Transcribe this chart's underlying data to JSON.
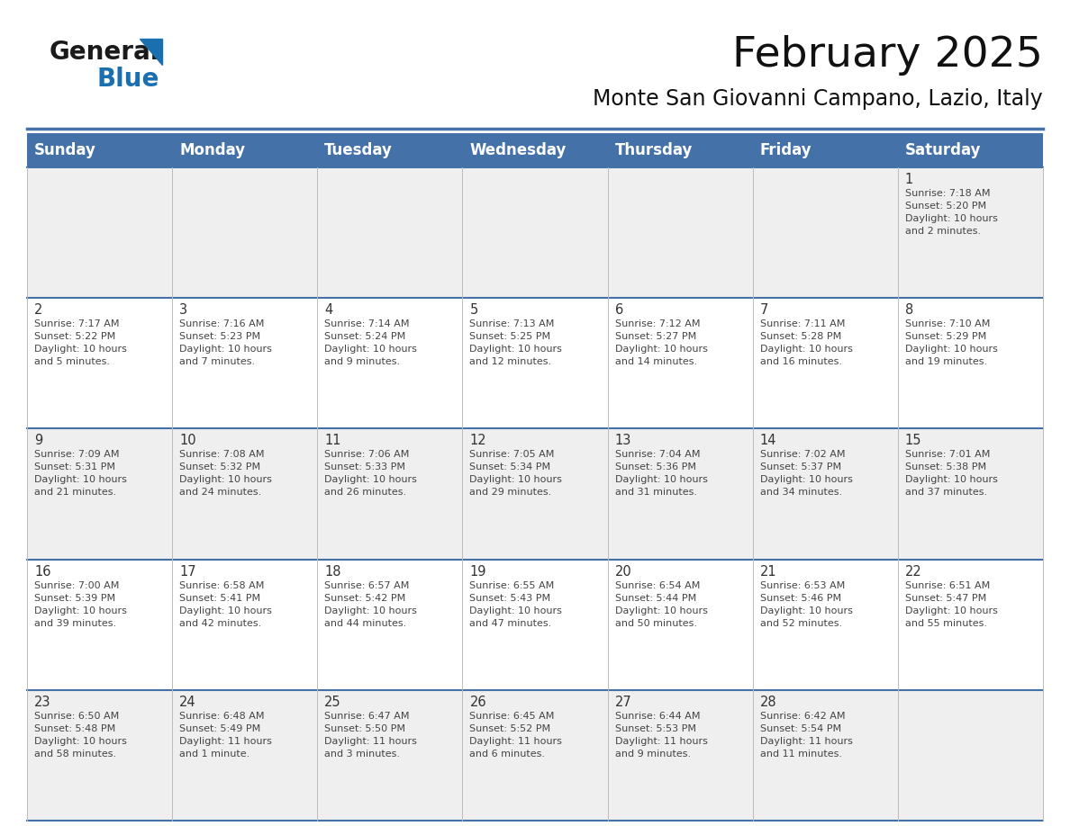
{
  "title": "February 2025",
  "subtitle": "Monte San Giovanni Campano, Lazio, Italy",
  "header_color": "#4472A8",
  "header_text_color": "#FFFFFF",
  "cell_bg_even": "#EFEFEF",
  "cell_bg_odd": "#FFFFFF",
  "day_headers": [
    "Sunday",
    "Monday",
    "Tuesday",
    "Wednesday",
    "Thursday",
    "Friday",
    "Saturday"
  ],
  "title_fontsize": 34,
  "subtitle_fontsize": 17,
  "header_fontsize": 12,
  "day_num_fontsize": 10.5,
  "cell_text_fontsize": 8.0,
  "logo_general_color": "#1a1a1a",
  "logo_blue_color": "#1a6faf",
  "logo_triangle_color": "#1a6faf",
  "days": [
    {
      "day": 1,
      "col": 6,
      "row": 0,
      "sunrise": "7:18 AM",
      "sunset": "5:20 PM",
      "daylight_line1": "10 hours",
      "daylight_line2": "and 2 minutes."
    },
    {
      "day": 2,
      "col": 0,
      "row": 1,
      "sunrise": "7:17 AM",
      "sunset": "5:22 PM",
      "daylight_line1": "10 hours",
      "daylight_line2": "and 5 minutes."
    },
    {
      "day": 3,
      "col": 1,
      "row": 1,
      "sunrise": "7:16 AM",
      "sunset": "5:23 PM",
      "daylight_line1": "10 hours",
      "daylight_line2": "and 7 minutes."
    },
    {
      "day": 4,
      "col": 2,
      "row": 1,
      "sunrise": "7:14 AM",
      "sunset": "5:24 PM",
      "daylight_line1": "10 hours",
      "daylight_line2": "and 9 minutes."
    },
    {
      "day": 5,
      "col": 3,
      "row": 1,
      "sunrise": "7:13 AM",
      "sunset": "5:25 PM",
      "daylight_line1": "10 hours",
      "daylight_line2": "and 12 minutes."
    },
    {
      "day": 6,
      "col": 4,
      "row": 1,
      "sunrise": "7:12 AM",
      "sunset": "5:27 PM",
      "daylight_line1": "10 hours",
      "daylight_line2": "and 14 minutes."
    },
    {
      "day": 7,
      "col": 5,
      "row": 1,
      "sunrise": "7:11 AM",
      "sunset": "5:28 PM",
      "daylight_line1": "10 hours",
      "daylight_line2": "and 16 minutes."
    },
    {
      "day": 8,
      "col": 6,
      "row": 1,
      "sunrise": "7:10 AM",
      "sunset": "5:29 PM",
      "daylight_line1": "10 hours",
      "daylight_line2": "and 19 minutes."
    },
    {
      "day": 9,
      "col": 0,
      "row": 2,
      "sunrise": "7:09 AM",
      "sunset": "5:31 PM",
      "daylight_line1": "10 hours",
      "daylight_line2": "and 21 minutes."
    },
    {
      "day": 10,
      "col": 1,
      "row": 2,
      "sunrise": "7:08 AM",
      "sunset": "5:32 PM",
      "daylight_line1": "10 hours",
      "daylight_line2": "and 24 minutes."
    },
    {
      "day": 11,
      "col": 2,
      "row": 2,
      "sunrise": "7:06 AM",
      "sunset": "5:33 PM",
      "daylight_line1": "10 hours",
      "daylight_line2": "and 26 minutes."
    },
    {
      "day": 12,
      "col": 3,
      "row": 2,
      "sunrise": "7:05 AM",
      "sunset": "5:34 PM",
      "daylight_line1": "10 hours",
      "daylight_line2": "and 29 minutes."
    },
    {
      "day": 13,
      "col": 4,
      "row": 2,
      "sunrise": "7:04 AM",
      "sunset": "5:36 PM",
      "daylight_line1": "10 hours",
      "daylight_line2": "and 31 minutes."
    },
    {
      "day": 14,
      "col": 5,
      "row": 2,
      "sunrise": "7:02 AM",
      "sunset": "5:37 PM",
      "daylight_line1": "10 hours",
      "daylight_line2": "and 34 minutes."
    },
    {
      "day": 15,
      "col": 6,
      "row": 2,
      "sunrise": "7:01 AM",
      "sunset": "5:38 PM",
      "daylight_line1": "10 hours",
      "daylight_line2": "and 37 minutes."
    },
    {
      "day": 16,
      "col": 0,
      "row": 3,
      "sunrise": "7:00 AM",
      "sunset": "5:39 PM",
      "daylight_line1": "10 hours",
      "daylight_line2": "and 39 minutes."
    },
    {
      "day": 17,
      "col": 1,
      "row": 3,
      "sunrise": "6:58 AM",
      "sunset": "5:41 PM",
      "daylight_line1": "10 hours",
      "daylight_line2": "and 42 minutes."
    },
    {
      "day": 18,
      "col": 2,
      "row": 3,
      "sunrise": "6:57 AM",
      "sunset": "5:42 PM",
      "daylight_line1": "10 hours",
      "daylight_line2": "and 44 minutes."
    },
    {
      "day": 19,
      "col": 3,
      "row": 3,
      "sunrise": "6:55 AM",
      "sunset": "5:43 PM",
      "daylight_line1": "10 hours",
      "daylight_line2": "and 47 minutes."
    },
    {
      "day": 20,
      "col": 4,
      "row": 3,
      "sunrise": "6:54 AM",
      "sunset": "5:44 PM",
      "daylight_line1": "10 hours",
      "daylight_line2": "and 50 minutes."
    },
    {
      "day": 21,
      "col": 5,
      "row": 3,
      "sunrise": "6:53 AM",
      "sunset": "5:46 PM",
      "daylight_line1": "10 hours",
      "daylight_line2": "and 52 minutes."
    },
    {
      "day": 22,
      "col": 6,
      "row": 3,
      "sunrise": "6:51 AM",
      "sunset": "5:47 PM",
      "daylight_line1": "10 hours",
      "daylight_line2": "and 55 minutes."
    },
    {
      "day": 23,
      "col": 0,
      "row": 4,
      "sunrise": "6:50 AM",
      "sunset": "5:48 PM",
      "daylight_line1": "10 hours",
      "daylight_line2": "and 58 minutes."
    },
    {
      "day": 24,
      "col": 1,
      "row": 4,
      "sunrise": "6:48 AM",
      "sunset": "5:49 PM",
      "daylight_line1": "11 hours",
      "daylight_line2": "and 1 minute."
    },
    {
      "day": 25,
      "col": 2,
      "row": 4,
      "sunrise": "6:47 AM",
      "sunset": "5:50 PM",
      "daylight_line1": "11 hours",
      "daylight_line2": "and 3 minutes."
    },
    {
      "day": 26,
      "col": 3,
      "row": 4,
      "sunrise": "6:45 AM",
      "sunset": "5:52 PM",
      "daylight_line1": "11 hours",
      "daylight_line2": "and 6 minutes."
    },
    {
      "day": 27,
      "col": 4,
      "row": 4,
      "sunrise": "6:44 AM",
      "sunset": "5:53 PM",
      "daylight_line1": "11 hours",
      "daylight_line2": "and 9 minutes."
    },
    {
      "day": 28,
      "col": 5,
      "row": 4,
      "sunrise": "6:42 AM",
      "sunset": "5:54 PM",
      "daylight_line1": "11 hours",
      "daylight_line2": "and 11 minutes."
    }
  ]
}
